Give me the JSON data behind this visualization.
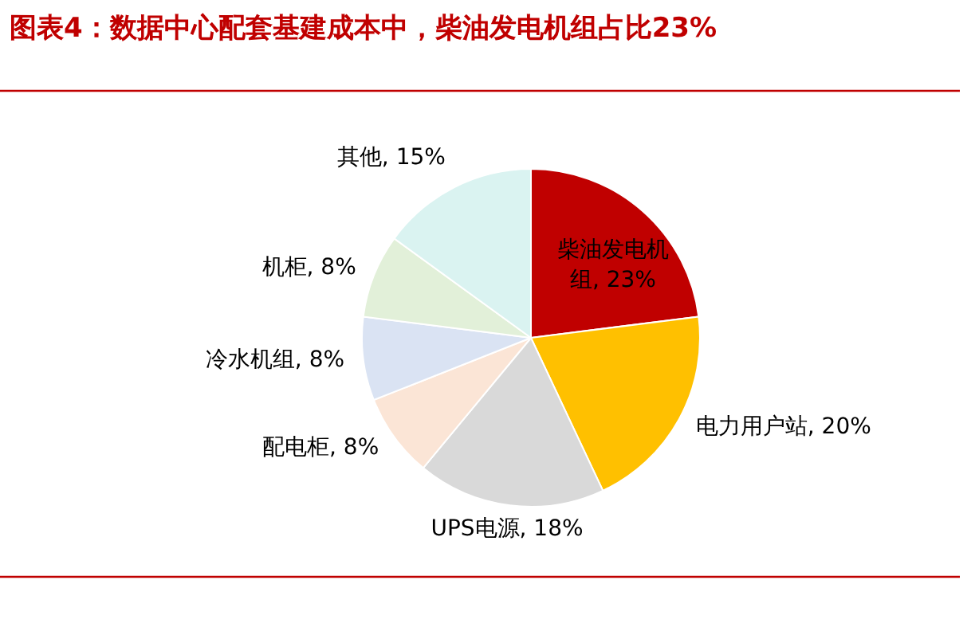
{
  "chart_data": {
    "type": "pie",
    "title": "图表4：数据中心配套基建成本中，柴油发电机组占比23%",
    "categories": [
      "柴油发电机组",
      "电力用户站",
      "UPS电源",
      "配电柜",
      "冷水机组",
      "机柜",
      "其他"
    ],
    "values": [
      23,
      20,
      18,
      8,
      8,
      8,
      15
    ],
    "value_labels": [
      "23%",
      "20%",
      "18%",
      "8%",
      "8%",
      "8%",
      "15%"
    ],
    "colors": [
      "#c00000",
      "#ffc000",
      "#d9d9d9",
      "#fbe5d6",
      "#dae3f3",
      "#e2f0d9",
      "#daf3f1"
    ]
  }
}
